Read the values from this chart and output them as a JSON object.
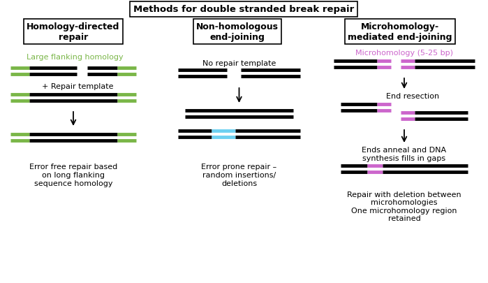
{
  "title": "Methods for double stranded break repair",
  "col1_header": "Homology-directed\nrepair",
  "col2_header": "Non-homologous\nend-joining",
  "col3_header": "Microhomology-\nmediated end-joining",
  "col1_label1": "Large flanking homology",
  "col2_label1": "No repair template",
  "col3_label1": "Microhomology (5-25 bp)",
  "col1_label2": "+ Repair template",
  "col1_bottom_text": "Error free repair based\non long flanking\nsequence homology",
  "col2_bottom_text": "Error prone repair –\nrandom insertions/\ndeletions",
  "col3_label2": "End resection",
  "col3_label3": "Ends anneal and DNA\nsynthesis fills in gaps",
  "col3_bottom_text": "Repair with deletion between\nmicrohomologies\nOne microhomology region\nretained",
  "green": "#7ab648",
  "black": "#000000",
  "cyan": "#6dd0f0",
  "magenta": "#cc66cc",
  "white": "#ffffff",
  "figsize": [
    6.99,
    4.06
  ],
  "dpi": 100
}
